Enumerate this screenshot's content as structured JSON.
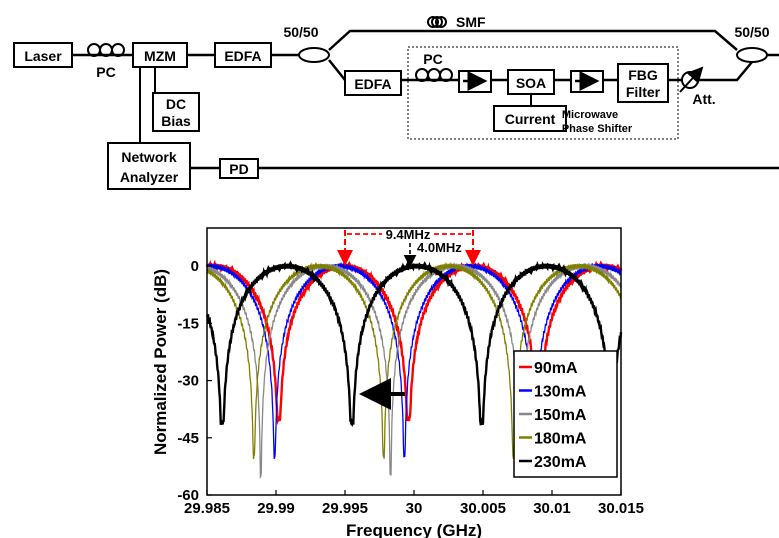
{
  "diagram": {
    "blocks": {
      "laser": "Laser",
      "mzm": "MZM",
      "edfa1": "EDFA",
      "edfa2": "EDFA",
      "dc_bias_line1": "DC",
      "dc_bias_line2": "Bias",
      "network_analyzer_line1": "Network",
      "network_analyzer_line2": "Analyzer",
      "pd": "PD",
      "soa": "SOA",
      "current": "Current",
      "fbg_line1": "FBG",
      "fbg_line2": "Filter"
    },
    "labels": {
      "pc1": "PC",
      "pc2": "PC",
      "smf": "SMF",
      "coupler_left": "50/50",
      "coupler_right": "50/50",
      "att": "Att.",
      "mps_line1": "Microwave",
      "mps_line2": "Phase Shifter"
    }
  },
  "chart_data": {
    "type": "line",
    "title": "",
    "xlabel": "Frequency (GHz)",
    "ylabel": "Normalized Power (dB)",
    "xlim": [
      29.985,
      30.015
    ],
    "ylim": [
      -60,
      10
    ],
    "xticks": [
      "29.985",
      "29.99",
      "29.995",
      "30",
      "30.005",
      "30.01",
      "30.015"
    ],
    "yticks": [
      "0",
      "-15",
      "-30",
      "-45",
      "-60"
    ],
    "legend_position": "lower-right",
    "series": [
      {
        "name": "90mA",
        "color": "#ff0000",
        "notch_center": 29.9996,
        "spacing": 0.0094,
        "notch_depth": -40
      },
      {
        "name": "130mA",
        "color": "#0000ff",
        "notch_center": 29.9993,
        "spacing": 0.0094,
        "notch_depth": -50
      },
      {
        "name": "150mA",
        "color": "#888888",
        "notch_center": 29.9983,
        "spacing": 0.0094,
        "notch_depth": -55
      },
      {
        "name": "180mA",
        "color": "#808000",
        "notch_center": 29.9978,
        "spacing": 0.0094,
        "notch_depth": -50
      },
      {
        "name": "230mA",
        "color": "#000000",
        "notch_center": 29.9955,
        "spacing": 0.0094,
        "notch_depth": -41
      }
    ],
    "annotations": {
      "spacing_label": "9.4MHz",
      "shift_label": "4.0MHz"
    }
  }
}
